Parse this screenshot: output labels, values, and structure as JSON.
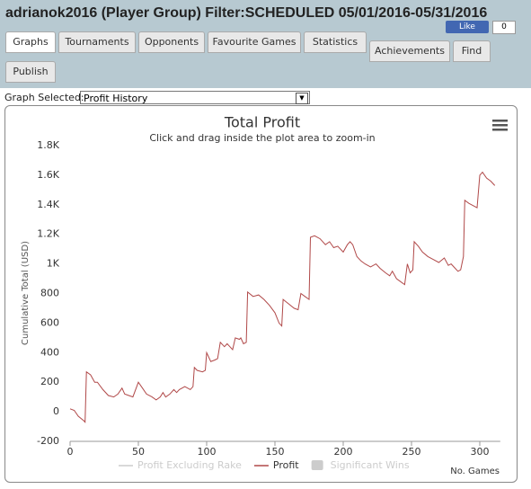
{
  "header": {
    "title": "adrianok2016 (Player Group) Filter:SCHEDULED 05/01/2016-05/31/2016",
    "like": "Like",
    "like_count": "0"
  },
  "tabs": [
    "Graphs",
    "Tournaments",
    "Opponents",
    "Favourite Games",
    "Statistics",
    "Achievements",
    "Find",
    "Publish"
  ],
  "selector": {
    "label": "Graph Selected:",
    "value": "Profit History"
  },
  "chart_data": {
    "type": "line",
    "title": "Total Profit",
    "subtitle": "Click and drag inside the plot area to zoom-in",
    "y_label": "Cumulative Total (USD)",
    "x_label": "No. Games",
    "color": "#b04848",
    "x": [
      0,
      3,
      6,
      10,
      11,
      12,
      15,
      18,
      20,
      24,
      28,
      32,
      35,
      38,
      40,
      43,
      46,
      50,
      53,
      56,
      60,
      63,
      66,
      68,
      70,
      73,
      76,
      78,
      80,
      84,
      88,
      90,
      91,
      93,
      97,
      99,
      100,
      103,
      106,
      108,
      110,
      113,
      115,
      119,
      121,
      124,
      125,
      127,
      129,
      130,
      134,
      138,
      142,
      146,
      150,
      153,
      155,
      156,
      160,
      164,
      167,
      169,
      172,
      175,
      176,
      179,
      183,
      187,
      190,
      193,
      196,
      200,
      203,
      205,
      207,
      210,
      213,
      216,
      220,
      224,
      227,
      231,
      234,
      236,
      239,
      242,
      245,
      247,
      249,
      251,
      252,
      255,
      258,
      262,
      266,
      270,
      274,
      277,
      279,
      282,
      284,
      286,
      288,
      289,
      292,
      296,
      298,
      300,
      302,
      305,
      308,
      311
    ],
    "values": [
      20,
      10,
      -30,
      -60,
      -70,
      270,
      250,
      200,
      200,
      150,
      110,
      100,
      120,
      160,
      120,
      110,
      100,
      200,
      160,
      120,
      100,
      80,
      100,
      130,
      100,
      120,
      150,
      130,
      150,
      170,
      150,
      170,
      300,
      280,
      270,
      280,
      400,
      340,
      350,
      360,
      470,
      440,
      460,
      420,
      500,
      490,
      500,
      460,
      470,
      810,
      780,
      790,
      760,
      720,
      670,
      600,
      580,
      760,
      730,
      700,
      690,
      800,
      780,
      760,
      1180,
      1190,
      1170,
      1130,
      1150,
      1110,
      1120,
      1080,
      1130,
      1150,
      1130,
      1050,
      1020,
      1000,
      980,
      1000,
      970,
      940,
      920,
      950,
      900,
      880,
      860,
      1000,
      940,
      960,
      1150,
      1120,
      1080,
      1050,
      1030,
      1010,
      1040,
      990,
      1000,
      970,
      950,
      960,
      1050,
      1430,
      1410,
      1390,
      1380,
      1600,
      1620,
      1580,
      1560,
      1530
    ],
    "xlim": [
      0,
      315
    ],
    "xticks": [
      0,
      50,
      100,
      150,
      200,
      250,
      300
    ],
    "ylim": [
      -200,
      1800
    ],
    "yticks": [
      -200,
      0,
      200,
      400,
      600,
      800,
      {
        "value": 1000,
        "label": "1K"
      },
      {
        "value": 1200,
        "label": "1.2K"
      },
      {
        "value": 1400,
        "label": "1.4K"
      },
      {
        "value": 1600,
        "label": "1.6K"
      },
      {
        "value": 1800,
        "label": "1.8K"
      }
    ],
    "legend": [
      {
        "name": "Profit Excluding Rake",
        "color": "#cccccc",
        "active": false
      },
      {
        "name": "Profit",
        "color": "#b04848",
        "active": true
      },
      {
        "name": "Significant Wins",
        "color": "#cccccc",
        "active": false
      }
    ]
  }
}
